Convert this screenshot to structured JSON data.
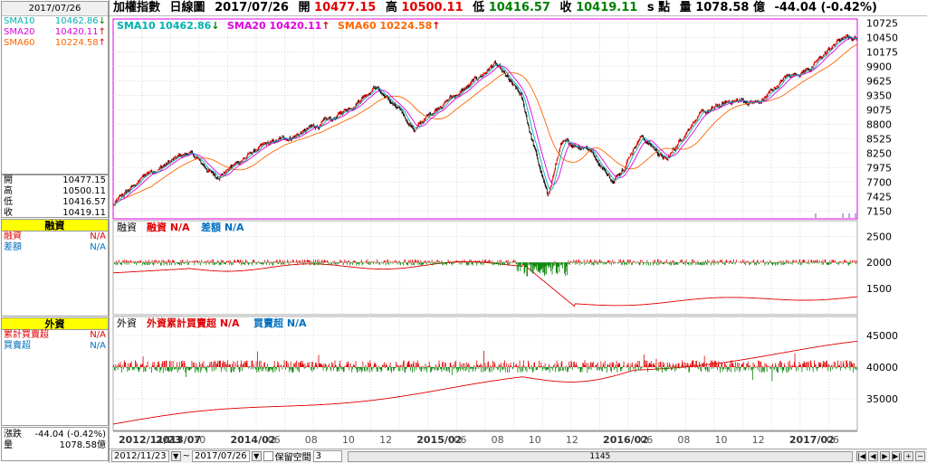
{
  "left": {
    "date": "2017/07/26",
    "ma": [
      {
        "name": "SMA10",
        "value": "10462.86",
        "color": "#00b0b0",
        "arrow": "↓",
        "dir": "dn"
      },
      {
        "name": "SMA20",
        "value": "10420.11",
        "color": "#e000e0",
        "arrow": "↑",
        "dir": "up"
      },
      {
        "name": "SMA60",
        "value": "10224.58",
        "color": "#ff6600",
        "arrow": "↑",
        "dir": "up"
      }
    ],
    "ohlc": [
      {
        "k": "開",
        "v": "10477.15"
      },
      {
        "k": "高",
        "v": "10500.11"
      },
      {
        "k": "低",
        "v": "10416.57"
      },
      {
        "k": "收",
        "v": "10419.11"
      }
    ],
    "margin_title": "融資",
    "margin_rows": [
      {
        "k": "融資",
        "v": "N/A",
        "color": "#e00000"
      },
      {
        "k": "差額",
        "v": "N/A",
        "color": "#0070c0"
      }
    ],
    "foreign_title": "外資",
    "foreign_rows": [
      {
        "k": "累計買賣超",
        "v": "N/A",
        "color": "#e00000"
      },
      {
        "k": "買賣超",
        "v": "N/A",
        "color": "#0070c0"
      }
    ],
    "change_label": "漲跌",
    "change_value": "-44.04 (-0.42%)",
    "volume_label": "量",
    "volume_value": "1078.58億"
  },
  "topbar": {
    "name": "加權指數",
    "period": "日線圖",
    "date": "2017/07/26",
    "open_label": "開",
    "open": "10477.15",
    "high_label": "高",
    "high": "10500.11",
    "low_label": "低",
    "low": "10416.57",
    "close_label": "收",
    "close": "10419.11",
    "unit": "s 點",
    "vol_label": "量",
    "vol": "1078.58 億",
    "change": "-44.04 (-0.42%)"
  },
  "legend_main": [
    {
      "text": "SMA10 10462.86",
      "arrow": "↓",
      "color": "#00b0b0"
    },
    {
      "text": "SMA20 10420.11",
      "arrow": "↑",
      "color": "#e000e0"
    },
    {
      "text": "SMA60 10224.58",
      "arrow": "↑",
      "color": "#ff6600"
    }
  ],
  "legend_margin": [
    {
      "text": "融資",
      "color": "#000"
    },
    {
      "text": "融資 N/A",
      "color": "#e00000"
    },
    {
      "text": "差額 N/A",
      "color": "#0070c0"
    }
  ],
  "legend_foreign": [
    {
      "text": "外資",
      "color": "#000"
    },
    {
      "text": "外資累計買賣超 N/A",
      "color": "#e00000"
    },
    {
      "text": "買賣超 N/A",
      "color": "#0070c0"
    }
  ],
  "bottombar": {
    "from": "2012/11/23",
    "tilde": "~",
    "to": "2017/07/26",
    "keep": "保留空間",
    "keep_val": "3",
    "scroll_val": "1145"
  },
  "chart_data": [
    {
      "type": "candlestick",
      "title": "加權指數 日線圖",
      "y_ticks": [
        7150,
        7425,
        7700,
        7975,
        8250,
        8525,
        8800,
        9075,
        9350,
        9625,
        9900,
        10175,
        10450,
        10725
      ],
      "ylim": [
        7000,
        10800
      ],
      "x_tick_labels": [
        "2012/11/23",
        "2013/07",
        "10",
        "2014/02",
        "06",
        "08",
        "10",
        "12",
        "2015/02",
        "06",
        "08",
        "10",
        "12",
        "2016/02",
        "06",
        "08",
        "10",
        "12",
        "2017/02",
        "06"
      ],
      "close_trend": [
        [
          "2012/11",
          7250
        ],
        [
          "2013/02",
          7900
        ],
        [
          "2013/05",
          8250
        ],
        [
          "2013/07",
          7800
        ],
        [
          "2013/10",
          8300
        ],
        [
          "2014/01",
          8600
        ],
        [
          "2014/04",
          8900
        ],
        [
          "2014/07",
          9550
        ],
        [
          "2014/10",
          8700
        ],
        [
          "2014/12",
          9200
        ],
        [
          "2015/02",
          9500
        ],
        [
          "2015/04",
          9950
        ],
        [
          "2015/06",
          9300
        ],
        [
          "2015/08",
          7400
        ],
        [
          "2015/09",
          8400
        ],
        [
          "2015/11",
          8400
        ],
        [
          "2016/01",
          7700
        ],
        [
          "2016/03",
          8600
        ],
        [
          "2016/05",
          8100
        ],
        [
          "2016/07",
          8900
        ],
        [
          "2016/10",
          9250
        ],
        [
          "2016/12",
          9200
        ],
        [
          "2017/02",
          9700
        ],
        [
          "2017/04",
          9900
        ],
        [
          "2017/06",
          10400
        ],
        [
          "2017/07",
          10450
        ]
      ],
      "series": [
        {
          "name": "SMA10",
          "last": 10462.86
        },
        {
          "name": "SMA20",
          "last": 10420.11
        },
        {
          "name": "SMA60",
          "last": 10224.58
        }
      ]
    },
    {
      "type": "bar",
      "title": "融資",
      "y_ticks": [
        1500,
        2000,
        2500
      ],
      "series": [
        {
          "name": "融資",
          "values": "N/A"
        },
        {
          "name": "差額",
          "values": "N/A"
        }
      ]
    },
    {
      "type": "bar",
      "title": "外資",
      "y_ticks": [
        35000,
        40000,
        45000
      ],
      "series": [
        {
          "name": "外資累計買賣超",
          "values": "N/A"
        },
        {
          "name": "買賣超",
          "values": "N/A"
        }
      ]
    }
  ]
}
